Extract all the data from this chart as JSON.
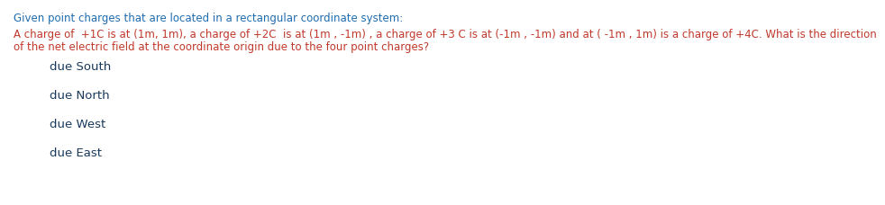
{
  "header": "Given point charges that are located in a rectangular coordinate system:",
  "body_line1": "A charge of  +1C is at (1m, 1m), a charge of +2C  is at (1m , -1m) , a charge of +3 C is at (-1m , -1m) and at ( -1m , 1m) is a charge of +4C. What is the direction",
  "body_line2": "of the net electric field at the coordinate origin due to the four point charges?",
  "options": [
    "due South",
    "due North",
    "due West",
    "due East"
  ],
  "header_color": "#1f6cb0",
  "body_color": "#c0392b",
  "option_color": "#1a3a5c",
  "bg_color": "#ffffff",
  "font_size": 8.5,
  "option_font_size": 9.5
}
